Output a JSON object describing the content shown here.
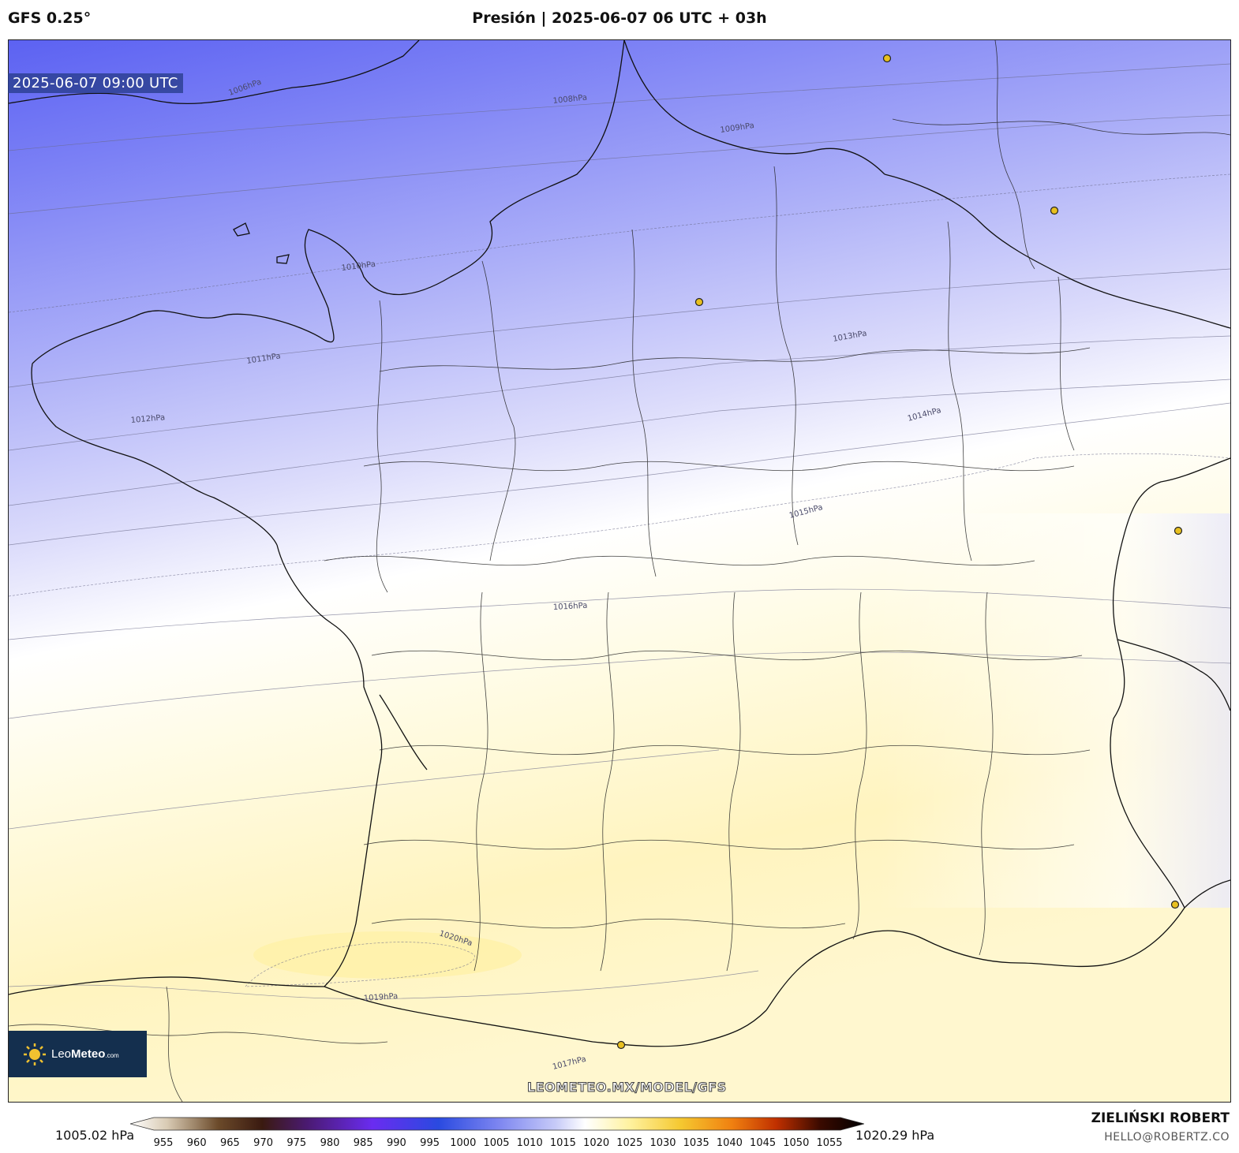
{
  "header": {
    "model": "GFS 0.25°",
    "title": "Presión | 2025-06-07 06 UTC + 03h"
  },
  "map": {
    "valid_time": "2025-06-07 09:00 UTC",
    "watermark": "LEOMETEO.MX/MODEL/GFS",
    "isobar_labels": [
      "1006hPa",
      "1008hPa",
      "1009hPa",
      "1010hPa",
      "1011hPa",
      "1012hPa",
      "1013hPa",
      "1014hPa",
      "1015hPa",
      "1016hPa",
      "1017hPa",
      "1019hPa",
      "1020hPa"
    ],
    "colors": {
      "low": "#5a60f0",
      "mid": "#ffffff",
      "high": "#fff3b0"
    }
  },
  "logo": {
    "brand_light": "Leo",
    "brand_bold": "Meteo",
    "suffix": ".com"
  },
  "colorbar": {
    "min_label": "1005.02 hPa",
    "max_label": "1020.29 hPa",
    "ticks": [
      "955",
      "960",
      "965",
      "970",
      "975",
      "980",
      "985",
      "990",
      "995",
      "1000",
      "1005",
      "1010",
      "1015",
      "1020",
      "1025",
      "1030",
      "1035",
      "1040",
      "1045",
      "1050",
      "1055"
    ]
  },
  "credits": {
    "author": "ZIELIŃSKI ROBERT",
    "email": "HELLO@ROBERTZ.CO"
  }
}
